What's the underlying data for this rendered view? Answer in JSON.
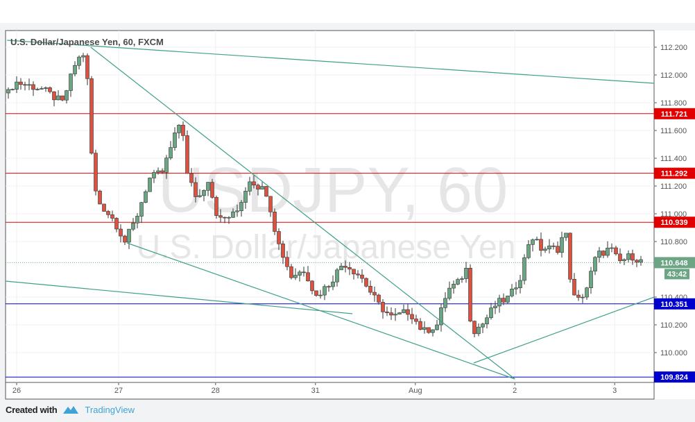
{
  "header": {
    "title": "U.S. Dollar/Japanese Yen, 60, FXCM"
  },
  "watermark": {
    "symbol": "USDJPY, 60",
    "name": "U.S. Dollar/Japanese Yen"
  },
  "footer": {
    "created_with": "Created with",
    "brand": "TradingView"
  },
  "colors": {
    "up": "#6ba583",
    "down": "#d75442",
    "resistance": "#e00000",
    "support": "#0000cc",
    "trendline": "#3f9f8a",
    "last": "#6ba583"
  },
  "chart_data": {
    "type": "candlestick",
    "title": "U.S. Dollar/Japanese Yen, 60, FXCM",
    "ylim": [
      109.78,
      112.32
    ],
    "y_ticks": [
      "112.200",
      "112.000",
      "111.800",
      "111.600",
      "111.400",
      "111.200",
      "111.000",
      "110.800",
      "110.400",
      "110.200",
      "110.000"
    ],
    "x_ticks": [
      {
        "label": "26",
        "bar": 2
      },
      {
        "label": "27",
        "bar": 26.5
      },
      {
        "label": "28",
        "bar": 49.8
      },
      {
        "label": "31",
        "bar": 73.8
      },
      {
        "label": "Aug",
        "bar": 97.8
      },
      {
        "label": "2",
        "bar": 121.7
      },
      {
        "label": "3",
        "bar": 145.7
      }
    ],
    "close_anchors": [
      [
        0,
        111.87
      ],
      [
        1.5,
        111.95
      ],
      [
        8,
        111.9
      ],
      [
        13,
        111.8
      ],
      [
        16.3,
        112.1
      ],
      [
        18,
        112.15
      ],
      [
        19.3,
        111.9
      ],
      [
        20.2,
        111.3
      ],
      [
        21.3,
        111.1
      ],
      [
        25.5,
        110.95
      ],
      [
        28,
        110.8
      ],
      [
        30.5,
        110.95
      ],
      [
        33.8,
        111.25
      ],
      [
        37,
        111.3
      ],
      [
        40.5,
        111.6
      ],
      [
        41.7,
        111.7
      ],
      [
        42.7,
        111.3
      ],
      [
        45.5,
        111.1
      ],
      [
        48,
        111.25
      ],
      [
        50.5,
        110.95
      ],
      [
        54.7,
        111.0
      ],
      [
        58,
        111.25
      ],
      [
        62.2,
        111.15
      ],
      [
        64.7,
        110.8
      ],
      [
        68,
        110.55
      ],
      [
        71.3,
        110.6
      ],
      [
        73.8,
        110.4
      ],
      [
        77.2,
        110.5
      ],
      [
        80.5,
        110.65
      ],
      [
        84.7,
        110.55
      ],
      [
        88.8,
        110.35
      ],
      [
        92.2,
        110.25
      ],
      [
        96.3,
        110.3
      ],
      [
        99.7,
        110.15
      ],
      [
        103,
        110.2
      ],
      [
        105.5,
        110.45
      ],
      [
        108,
        110.5
      ],
      [
        110,
        110.6
      ],
      [
        111.3,
        110.15
      ],
      [
        113.8,
        110.2
      ],
      [
        117.2,
        110.35
      ],
      [
        120.5,
        110.4
      ],
      [
        123,
        110.55
      ],
      [
        125.5,
        110.85
      ],
      [
        128,
        110.75
      ],
      [
        132.2,
        110.75
      ],
      [
        133.8,
        110.9
      ],
      [
        135,
        110.55
      ],
      [
        136.3,
        110.35
      ],
      [
        138.8,
        110.45
      ],
      [
        141.3,
        110.7
      ],
      [
        144.7,
        110.75
      ],
      [
        146.7,
        110.65
      ],
      [
        149.7,
        110.7
      ],
      [
        152.5,
        110.648
      ]
    ],
    "bars": 153,
    "horizontal_levels": [
      {
        "price": 111.721,
        "label": "111.721",
        "kind": "resistance"
      },
      {
        "price": 111.292,
        "label": "111.292",
        "kind": "resistance"
      },
      {
        "price": 110.939,
        "label": "110.939",
        "kind": "resistance"
      },
      {
        "price": 110.351,
        "label": "110.351",
        "kind": "support"
      },
      {
        "price": 109.824,
        "label": "109.824",
        "kind": "support"
      }
    ],
    "last_price": {
      "price": 110.648,
      "label": "110.648",
      "countdown": "43:42"
    },
    "trendlines": [
      [
        [
          -0.3,
          112.25
        ],
        [
          155.2,
          111.94
        ]
      ],
      [
        [
          19.8,
          112.2
        ],
        [
          121.7,
          109.81
        ]
      ],
      [
        [
          28.5,
          110.79
        ],
        [
          121.7,
          109.81
        ]
      ],
      [
        [
          -0.7,
          110.515
        ],
        [
          82.7,
          110.28
        ]
      ],
      [
        [
          111.8,
          109.925
        ],
        [
          155.2,
          110.4
        ]
      ]
    ]
  }
}
